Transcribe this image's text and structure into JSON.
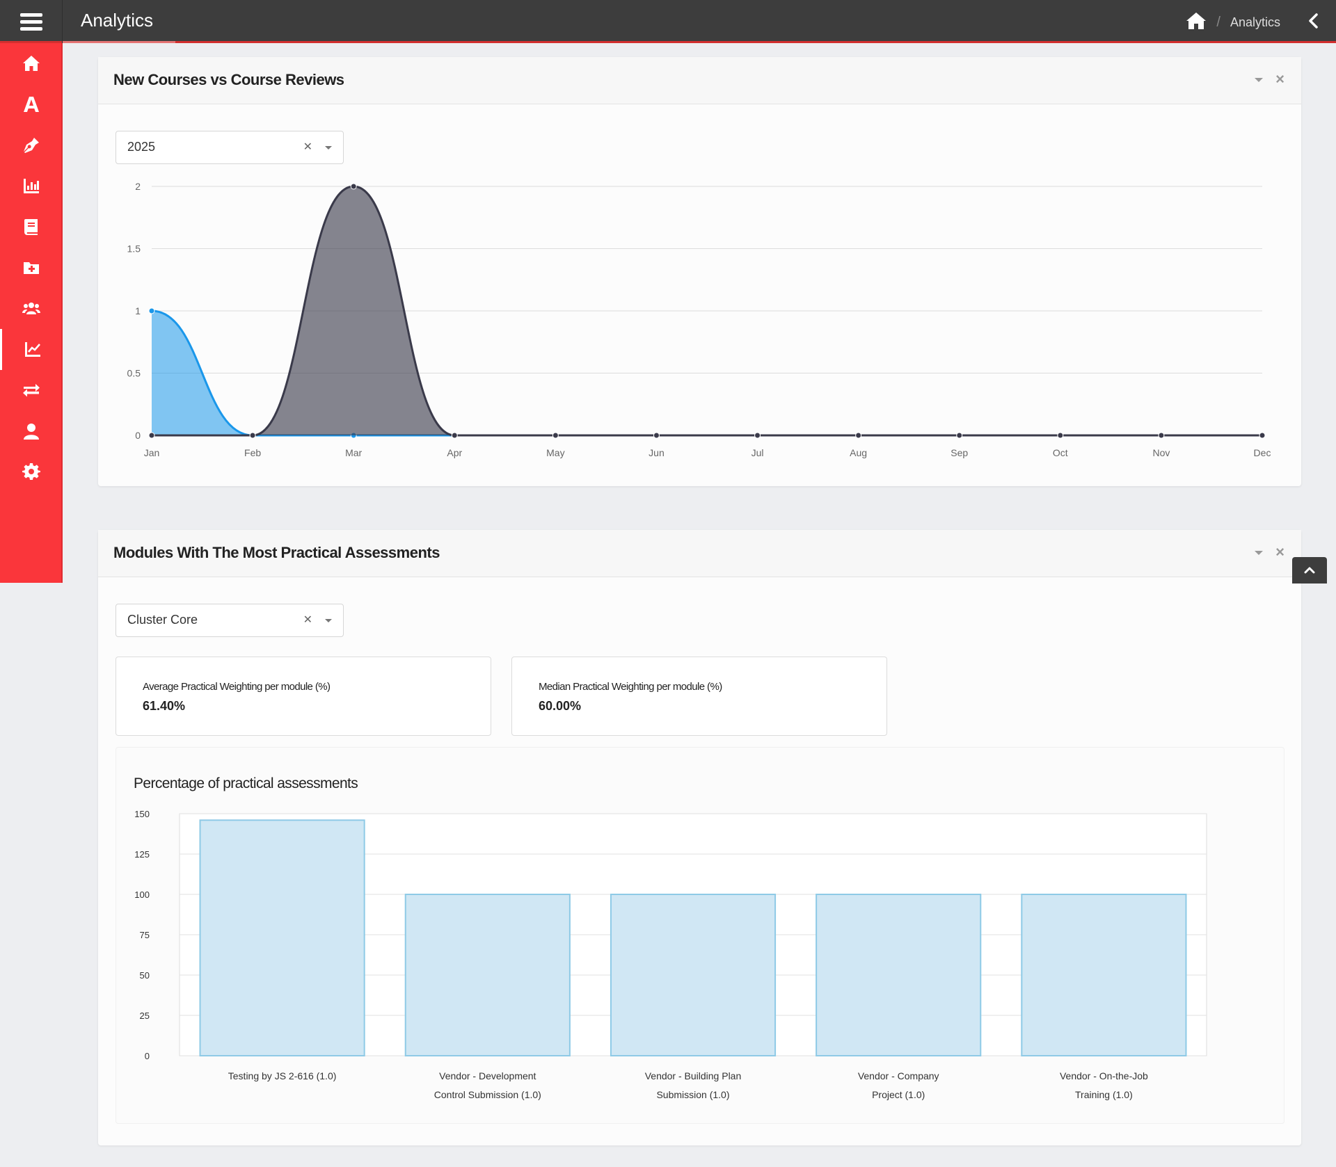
{
  "topbar": {
    "title": "Analytics",
    "breadcrumb": {
      "current": "Analytics",
      "separator": "/"
    }
  },
  "sidebar": {
    "items": [
      {
        "icon": "home-icon"
      },
      {
        "icon": "font-a-icon"
      },
      {
        "icon": "pen-nib-icon"
      },
      {
        "icon": "bar-chart-icon"
      },
      {
        "icon": "book-icon"
      },
      {
        "icon": "folder-plus-icon"
      },
      {
        "icon": "users-icon"
      },
      {
        "icon": "line-chart-icon",
        "active": true
      },
      {
        "icon": "exchange-arrows-icon"
      },
      {
        "icon": "user-icon"
      },
      {
        "icon": "gear-icon"
      }
    ],
    "colors": {
      "background": "#fa363b"
    }
  },
  "panel1": {
    "title": "New Courses vs Course Reviews",
    "year_select": "2025",
    "close_label": "×"
  },
  "panel2": {
    "title": "Modules With The Most Practical Assessments",
    "cluster_select": "Cluster Core",
    "close_label": "×",
    "stats": [
      {
        "label": "Average Practical Weighting per module (%)",
        "value": "61.40%"
      },
      {
        "label": "Median Practical Weighting per module (%)",
        "value": "60.00%"
      }
    ],
    "bar_chart_title": "Percentage of practical assessments"
  },
  "chart_data": [
    {
      "type": "area",
      "x": [
        "Jan",
        "Feb",
        "Mar",
        "Apr",
        "May",
        "Jun",
        "Jul",
        "Aug",
        "Sep",
        "Oct",
        "Nov",
        "Dec"
      ],
      "series": [
        {
          "values": [
            1,
            0,
            0,
            0,
            0,
            0,
            0,
            0,
            0,
            0,
            0,
            0
          ],
          "color": "#1a97ea"
        },
        {
          "values": [
            0,
            0,
            2,
            0,
            0,
            0,
            0,
            0,
            0,
            0,
            0,
            0
          ],
          "color": "#3a3a4a"
        }
      ],
      "yticks": [
        "0",
        "0.5",
        "1",
        "1.5",
        "2"
      ],
      "ylim": [
        0,
        2
      ],
      "grid": true
    },
    {
      "type": "bar",
      "title": "Percentage of practical assessments",
      "categories": [
        [
          "Testing by JS 2-616 (1.0)"
        ],
        [
          "Vendor - Development",
          "Control Submission (1.0)"
        ],
        [
          "Vendor - Building Plan",
          "Submission (1.0)"
        ],
        [
          "Vendor - Company",
          "Project (1.0)"
        ],
        [
          "Vendor - On-the-Job",
          "Training (1.0)"
        ]
      ],
      "values": [
        146,
        100,
        100,
        100,
        100
      ],
      "yticks": [
        "0",
        "25",
        "50",
        "75",
        "100",
        "125",
        "150"
      ],
      "ylim": [
        0,
        150
      ],
      "grid": true,
      "bar_color": "#d0e7f4",
      "bar_border": "#8ecae6"
    }
  ]
}
